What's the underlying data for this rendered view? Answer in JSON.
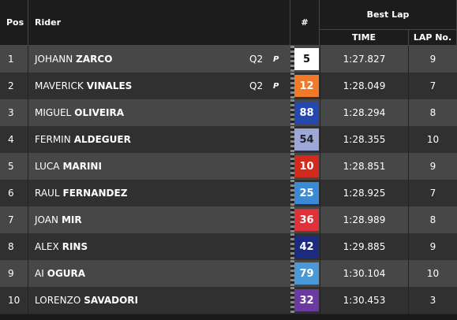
{
  "table": {
    "header": {
      "pos": "Pos",
      "rider": "Rider",
      "number": "#",
      "best_lap": "Best Lap",
      "time": "TIME",
      "laps": "LAP No."
    },
    "rows": [
      {
        "pos": "1",
        "first": "JOHANN",
        "last": "ZARCO",
        "tag": "Q2",
        "icon": "P",
        "number": "5",
        "color": "#ffffff",
        "text_color": "#111111",
        "time": "1:27.827",
        "laps": "9"
      },
      {
        "pos": "2",
        "first": "MAVERICK",
        "last": "VINALES",
        "tag": "Q2",
        "icon": "P",
        "number": "12",
        "color": "#f07a2a",
        "text_color": "#ffffff",
        "time": "1:28.049",
        "laps": "7"
      },
      {
        "pos": "3",
        "first": "MIGUEL",
        "last": "OLIVEIRA",
        "number": "88",
        "color": "#2448b0",
        "text_color": "#ffffff",
        "time": "1:28.294",
        "laps": "8"
      },
      {
        "pos": "4",
        "first": "FERMIN",
        "last": "ALDEGUER",
        "number": "54",
        "color": "#9ea8d8",
        "text_color": "#222222",
        "time": "1:28.355",
        "laps": "10"
      },
      {
        "pos": "5",
        "first": "LUCA",
        "last": "MARINI",
        "number": "10",
        "color": "#d42a1e",
        "text_color": "#ffffff",
        "time": "1:28.851",
        "laps": "9"
      },
      {
        "pos": "6",
        "first": "RAUL",
        "last": "FERNANDEZ",
        "number": "25",
        "color": "#3a8ad8",
        "text_color": "#ffffff",
        "time": "1:28.925",
        "laps": "7"
      },
      {
        "pos": "7",
        "first": "JOAN",
        "last": "MIR",
        "number": "36",
        "color": "#e0303a",
        "text_color": "#ffffff",
        "time": "1:28.989",
        "laps": "8"
      },
      {
        "pos": "8",
        "first": "ALEX",
        "last": "RINS",
        "number": "42",
        "color": "#1c2a80",
        "text_color": "#ffffff",
        "time": "1:29.885",
        "laps": "9"
      },
      {
        "pos": "9",
        "first": "AI",
        "last": "OGURA",
        "number": "79",
        "color": "#4a98d8",
        "text_color": "#ffffff",
        "time": "1:30.104",
        "laps": "10"
      },
      {
        "pos": "10",
        "first": "LORENZO",
        "last": "SAVADORI",
        "number": "32",
        "color": "#6a3aa0",
        "text_color": "#ffffff",
        "time": "1:30.453",
        "laps": "3"
      }
    ]
  }
}
